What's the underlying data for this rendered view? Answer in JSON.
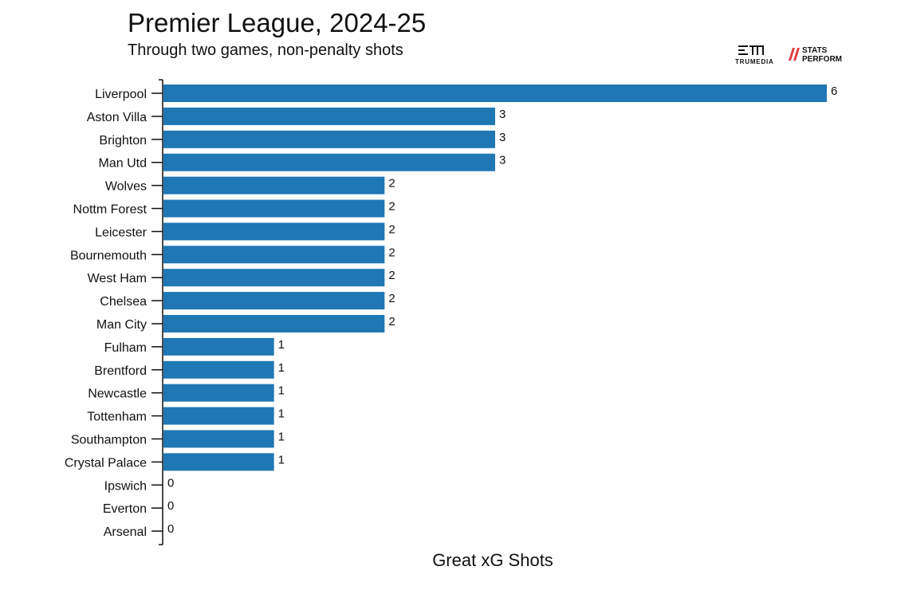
{
  "header": {
    "title": "Premier League, 2024-25",
    "subtitle": "Through two games, non-penalty shots"
  },
  "logos": {
    "trumedia": "TRUMEDIA",
    "stats_perform_line1": "STATS",
    "stats_perform_line2": "PERFORM",
    "stats_perform_accent": "#e03a3e"
  },
  "chart_data": {
    "type": "bar",
    "orientation": "horizontal",
    "categories": [
      "Liverpool",
      "Aston Villa",
      "Brighton",
      "Man Utd",
      "Wolves",
      "Nottm Forest",
      "Leicester",
      "Bournemouth",
      "West Ham",
      "Chelsea",
      "Man City",
      "Fulham",
      "Brentford",
      "Newcastle",
      "Tottenham",
      "Southampton",
      "Crystal Palace",
      "Ipswich",
      "Everton",
      "Arsenal"
    ],
    "values": [
      6,
      3,
      3,
      3,
      2,
      2,
      2,
      2,
      2,
      2,
      2,
      1,
      1,
      1,
      1,
      1,
      1,
      0,
      0,
      0
    ],
    "title": "Premier League, 2024-25",
    "subtitle": "Through two games, non-penalty shots",
    "xlabel": "Great xG Shots",
    "ylabel": "",
    "xlim": [
      0,
      6
    ],
    "bar_color": "#1f77b4",
    "data_labels": true,
    "grid": false
  }
}
